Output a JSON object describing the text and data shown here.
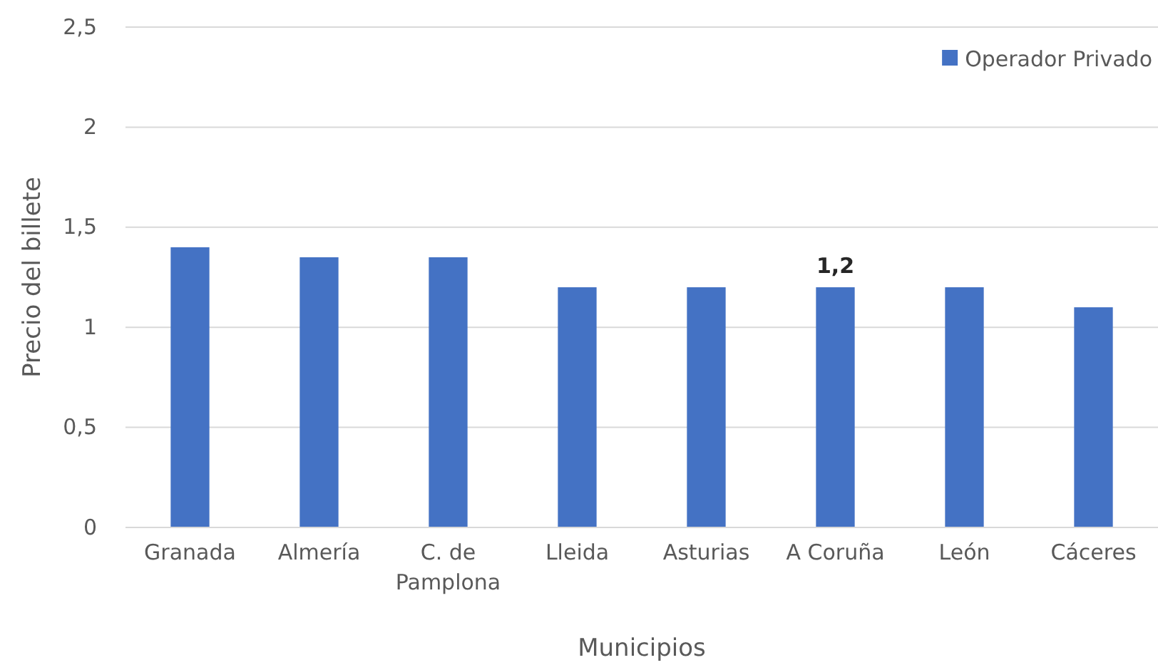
{
  "chart_data": {
    "type": "bar",
    "xlabel": "Municipios",
    "ylabel": "Precio del billete",
    "categories": [
      "Granada",
      "Almería",
      "C. de Pamplona",
      "Lleida",
      "Asturias",
      "A Coruña",
      "León",
      "Cáceres"
    ],
    "series": [
      {
        "name": "Operador Privado",
        "color": "#4472c4",
        "values": [
          1.4,
          1.35,
          1.35,
          1.2,
          1.2,
          1.2,
          1.2,
          1.1
        ],
        "value_labels": [
          null,
          null,
          null,
          null,
          null,
          "1,2",
          null,
          null
        ]
      }
    ],
    "ylim": [
      0,
      2.5
    ],
    "yticks": [
      0,
      {
        "value": 0.5,
        "label": "0,5"
      },
      1,
      {
        "value": 1.5,
        "label": "1,5"
      },
      2,
      {
        "value": 2.5,
        "label": "2,5"
      }
    ],
    "grid": "y",
    "legend": "top right"
  }
}
